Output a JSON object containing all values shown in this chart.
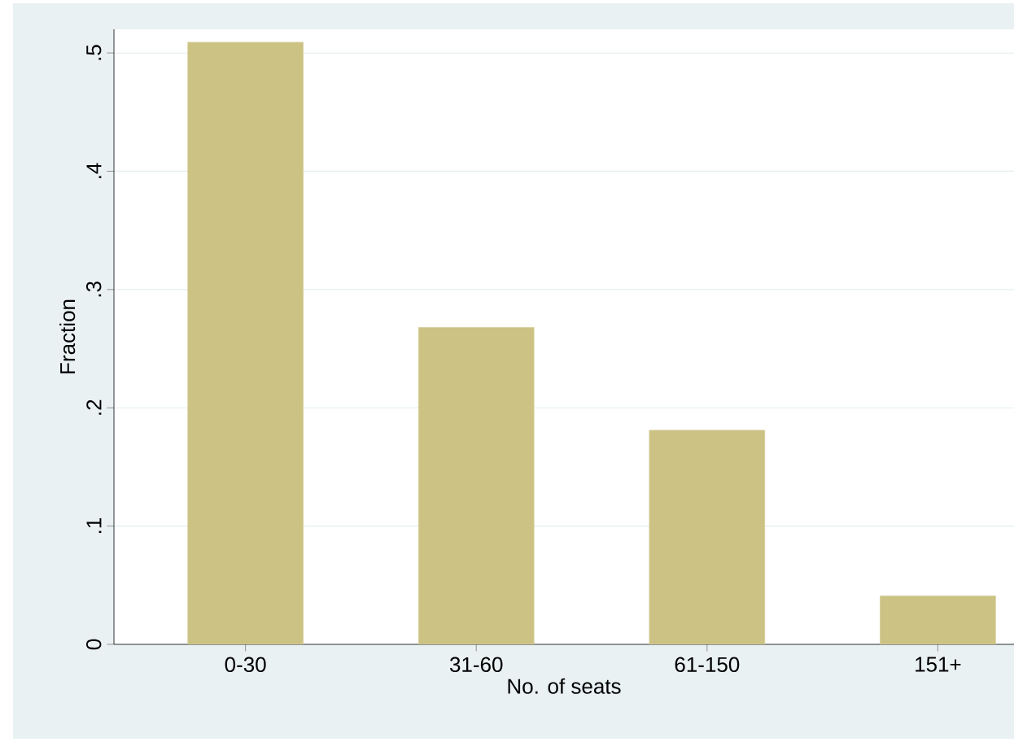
{
  "chart_data": {
    "type": "bar",
    "xlabel": "No. of seats",
    "ylabel": "Fraction",
    "categories": [
      "0-30",
      "31-60",
      "61-150",
      "151+"
    ],
    "values": [
      0.509,
      0.268,
      0.181,
      0.041
    ],
    "color": "#cbc283",
    "ylim": [
      0,
      0.52
    ],
    "yticks": [
      0,
      {
        "value": 0.1,
        "label": ".1"
      },
      {
        "value": 0.2,
        "label": ".2"
      },
      {
        "value": 0.3,
        "label": ".3"
      },
      {
        "value": 0.4,
        "label": ".4"
      },
      {
        "value": 0.5,
        "label": ".5"
      }
    ],
    "grid": "y"
  }
}
